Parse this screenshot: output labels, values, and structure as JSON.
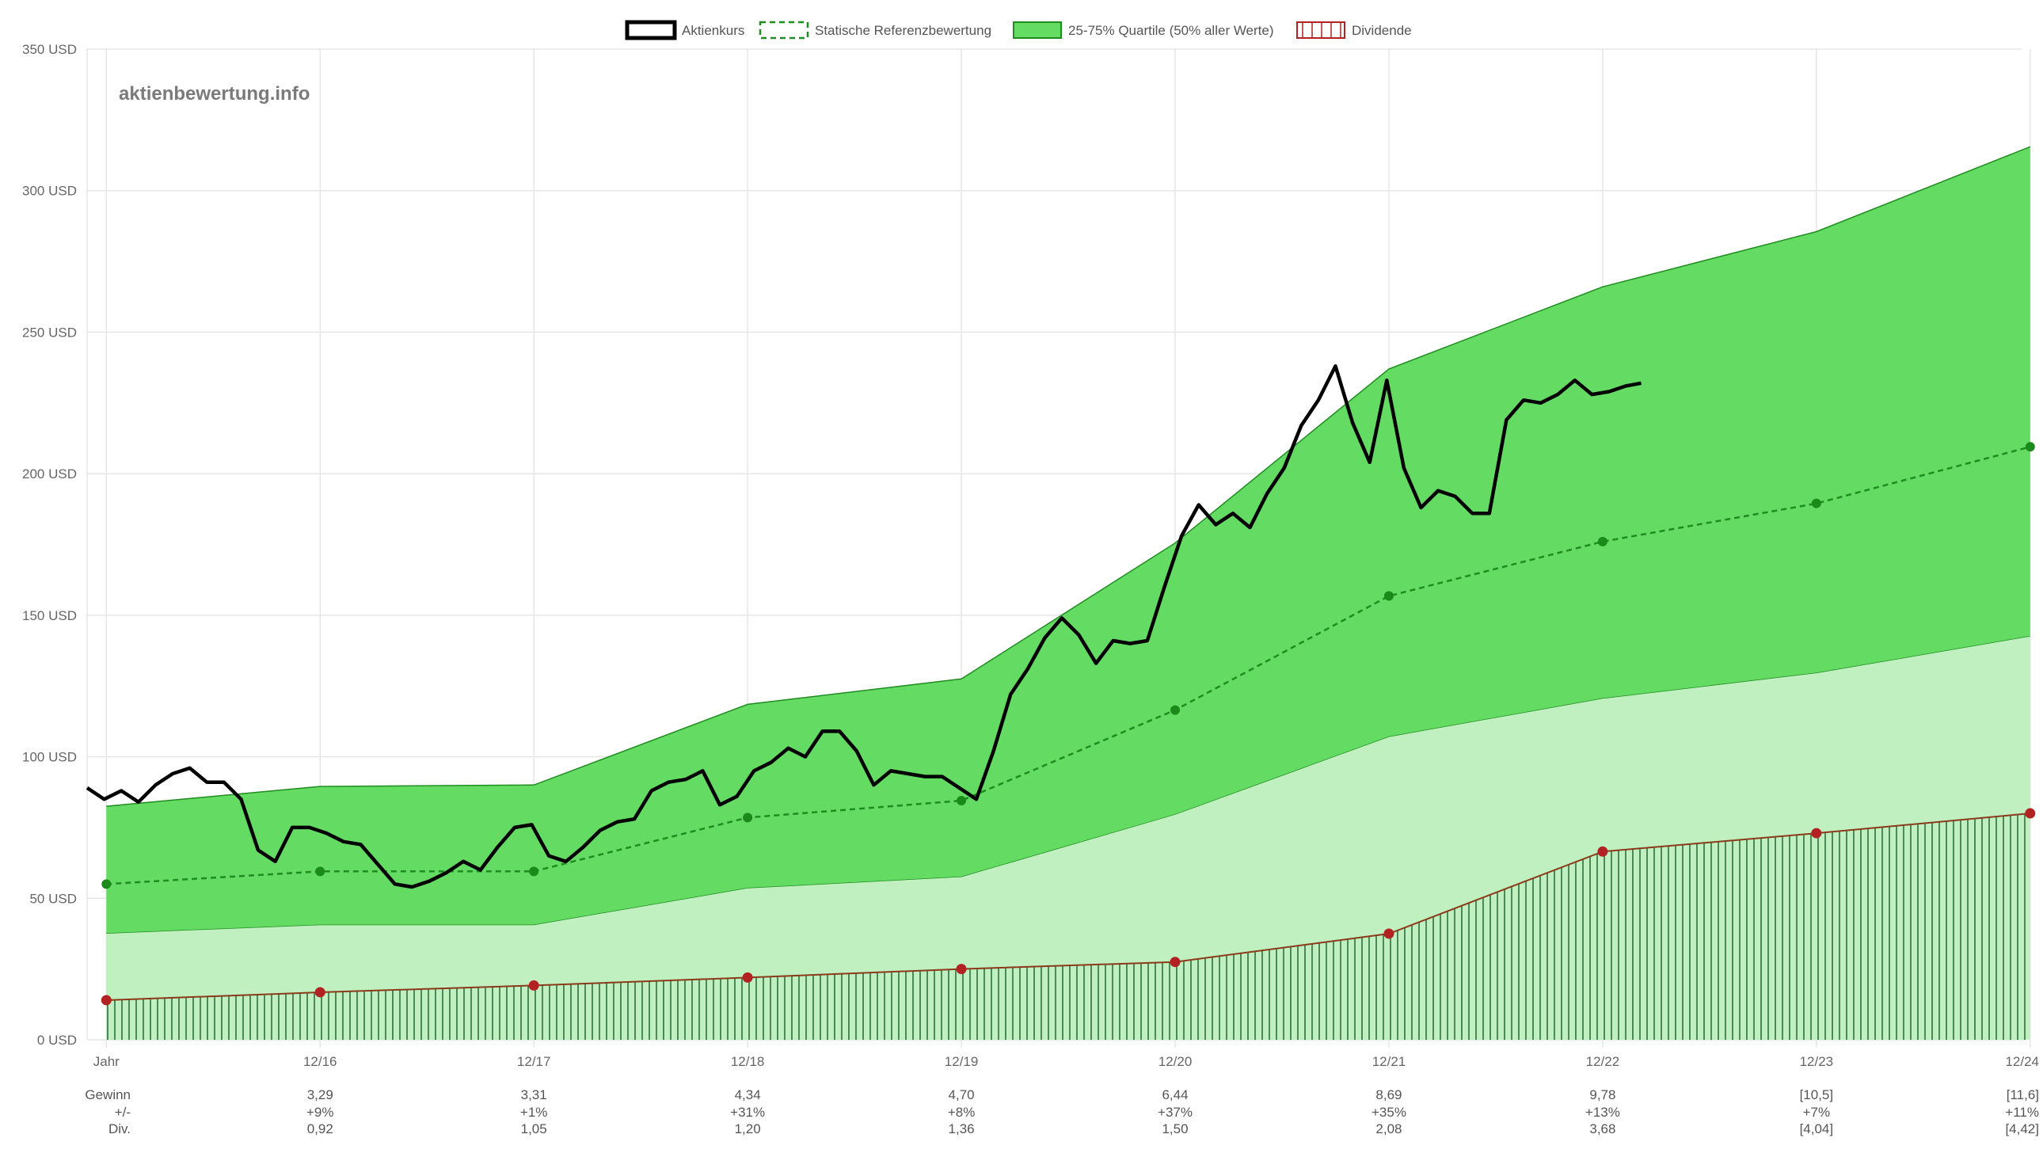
{
  "watermark": "aktienbewertung.info",
  "colors": {
    "price": "#000000",
    "reference": "#1e8c1e",
    "quartile_fill": "#64dc64",
    "lower_fill": "#c0f0c0",
    "dividend_line": "#8b3a1a",
    "dividend_point": "#b22222",
    "dividend_hatch": "#4a8a5a",
    "grid": "#e6e6e6"
  },
  "chart_data": {
    "type": "line",
    "title": "",
    "xlabel": "",
    "ylabel": "",
    "ylim": [
      0,
      350
    ],
    "y_unit": "USD",
    "y_ticks": [
      0,
      50,
      100,
      150,
      200,
      250,
      300,
      350
    ],
    "x_range": [
      2015.9,
      2024.95
    ],
    "categories": [
      "Jahr",
      "12/16",
      "12/17",
      "12/18",
      "12/19",
      "12/20",
      "12/21",
      "12/22",
      "12/23",
      "12/24"
    ],
    "category_x": [
      2015.99,
      2016.99,
      2017.99,
      2018.99,
      2019.99,
      2020.99,
      2021.99,
      2022.99,
      2023.99,
      2024.99
    ],
    "grid": true,
    "legend_position": "top",
    "legend": [
      {
        "key": "price",
        "label": "Aktienkurs"
      },
      {
        "key": "reference",
        "label": "Statische Referenzbewertung"
      },
      {
        "key": "quartile",
        "label": "25-75% Quartile (50% aller Werte)"
      },
      {
        "key": "dividend",
        "label": "Dividende"
      }
    ],
    "series": [
      {
        "name": "Aktienkurs",
        "type": "line",
        "x": [
          2015.9,
          2015.98,
          2016.06,
          2016.14,
          2016.22,
          2016.3,
          2016.38,
          2016.46,
          2016.54,
          2016.62,
          2016.7,
          2016.78,
          2016.86,
          2016.94,
          2017.02,
          2017.1,
          2017.18,
          2017.26,
          2017.34,
          2017.42,
          2017.5,
          2017.58,
          2017.66,
          2017.74,
          2017.82,
          2017.9,
          2017.98,
          2018.06,
          2018.14,
          2018.22,
          2018.3,
          2018.38,
          2018.46,
          2018.54,
          2018.62,
          2018.7,
          2018.78,
          2018.86,
          2018.94,
          2019.02,
          2019.1,
          2019.18,
          2019.26,
          2019.34,
          2019.42,
          2019.5,
          2019.58,
          2019.66,
          2019.74,
          2019.82,
          2019.9,
          2019.98,
          2020.06,
          2020.14,
          2020.22,
          2020.3,
          2020.38,
          2020.46,
          2020.54,
          2020.62,
          2020.7,
          2020.78,
          2020.86,
          2020.94,
          2021.02,
          2021.1,
          2021.18,
          2021.26,
          2021.34,
          2021.42,
          2021.5,
          2021.58,
          2021.66,
          2021.74,
          2021.82,
          2021.9,
          2021.98,
          2022.06,
          2022.14,
          2022.22,
          2022.3,
          2022.38,
          2022.46,
          2022.54,
          2022.62,
          2022.7,
          2022.78,
          2022.86,
          2022.94,
          2023.02,
          2023.1,
          2023.17
        ],
        "values": [
          89,
          85,
          88,
          84,
          90,
          94,
          96,
          91,
          91,
          85,
          67,
          63,
          75,
          75,
          73,
          70,
          69,
          62,
          55,
          54,
          56,
          59,
          63,
          60,
          68,
          75,
          76,
          65,
          63,
          68,
          74,
          77,
          78,
          88,
          91,
          92,
          95,
          83,
          86,
          95,
          98,
          103,
          100,
          109,
          109,
          102,
          90,
          95,
          94,
          93,
          93,
          89,
          85,
          102,
          122,
          131,
          142,
          149,
          143,
          133,
          141,
          140,
          141,
          160,
          178,
          189,
          182,
          186,
          181,
          193,
          202,
          217,
          226,
          238,
          218,
          204,
          233,
          202,
          188,
          194,
          192,
          186,
          186,
          219,
          226,
          225,
          228,
          233,
          228,
          229,
          231,
          232
        ],
        "color": "#000000"
      },
      {
        "name": "Statische Referenzbewertung",
        "type": "line",
        "style": "dashed",
        "x": [
          2015.99,
          2016.99,
          2017.99,
          2018.99,
          2019.99,
          2020.99,
          2021.99,
          2022.99,
          2023.99,
          2024.99
        ],
        "values": [
          55,
          59.5,
          59.5,
          78.5,
          84.5,
          116.5,
          156.8,
          176,
          189.5,
          209.5
        ],
        "color": "#1e8c1e"
      },
      {
        "name": "25-75% Quartile (50% aller Werte)",
        "type": "area",
        "x": [
          2015.99,
          2016.99,
          2017.99,
          2018.99,
          2019.99,
          2020.99,
          2021.99,
          2022.99,
          2023.99,
          2024.99
        ],
        "upper": [
          82.5,
          89.5,
          90,
          118.5,
          127.5,
          175.5,
          237,
          266,
          285.5,
          315.5
        ],
        "lower": [
          37.5,
          40.5,
          40.5,
          53.5,
          57.5,
          79.5,
          107,
          120.5,
          129.5,
          142.5
        ],
        "color": "#64dc64"
      },
      {
        "name": "Dividende",
        "type": "area",
        "x": [
          2015.99,
          2016.99,
          2017.99,
          2018.99,
          2019.99,
          2020.99,
          2021.99,
          2022.99,
          2023.99,
          2024.99
        ],
        "values": [
          14,
          16.8,
          19.2,
          22,
          25,
          27.5,
          37.5,
          66.5,
          73,
          80
        ],
        "color": "#b22222"
      }
    ],
    "table": {
      "rows": [
        {
          "label": "Gewinn",
          "values": [
            "3,29",
            "3,31",
            "4,34",
            "4,70",
            "6,44",
            "8,69",
            "9,78",
            "[10,5]",
            "[11,6]"
          ]
        },
        {
          "label": "+/-",
          "values": [
            "+9%",
            "+1%",
            "+31%",
            "+8%",
            "+37%",
            "+35%",
            "+13%",
            "+7%",
            "+11%"
          ]
        },
        {
          "label": "Div.",
          "values": [
            "0,92",
            "1,05",
            "1,20",
            "1,36",
            "1,50",
            "2,08",
            "3,68",
            "[4,04]",
            "[4,42]"
          ]
        }
      ]
    }
  }
}
